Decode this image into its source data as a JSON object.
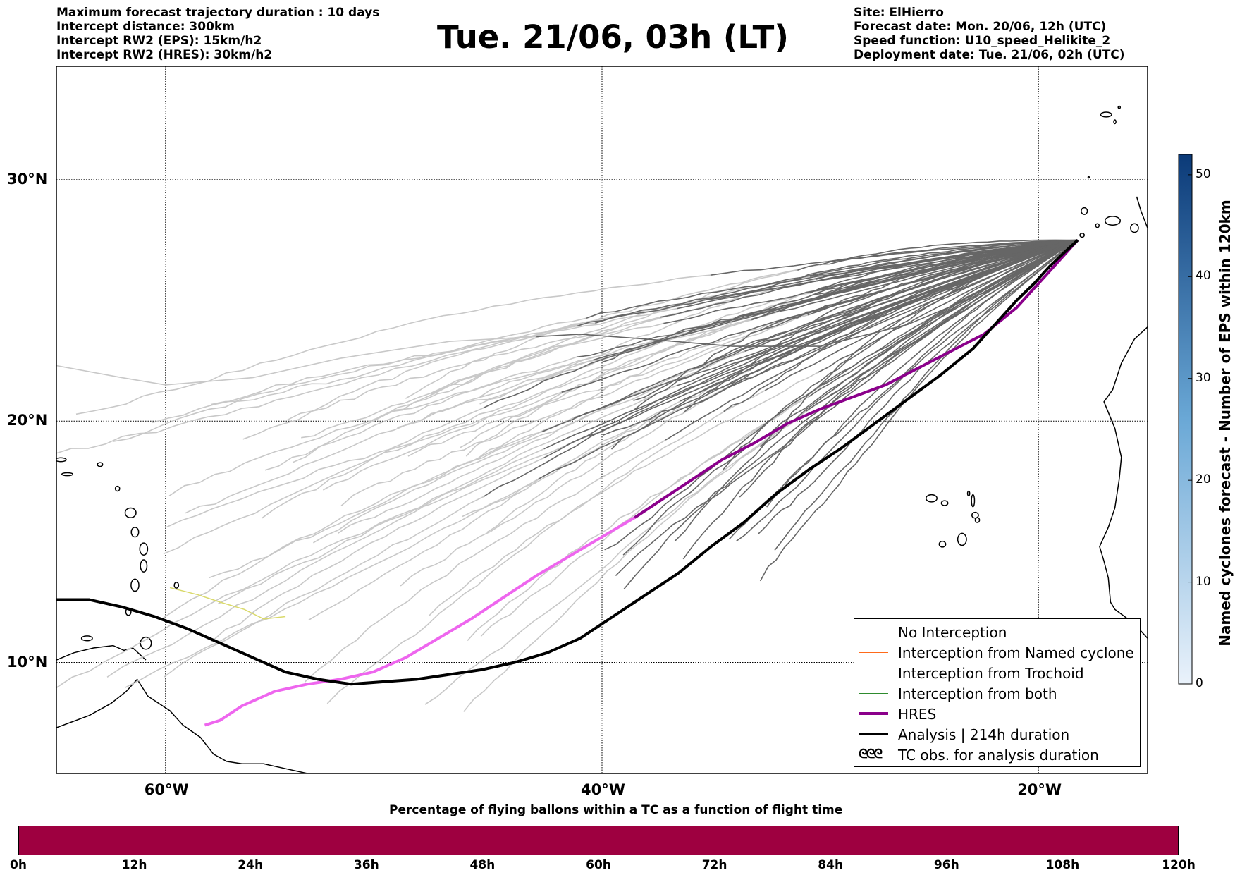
{
  "header": {
    "left_lines": [
      "Maximum forecast trajectory duration : 10 days",
      "Intercept distance: 300km",
      "Intercept RW2 (EPS):  15km/h2",
      "Intercept RW2 (HRES): 30km/h2"
    ],
    "title": "Tue. 21/06, 03h (LT)",
    "right_lines": [
      "Site: ElHierro",
      "Forecast date: Mon. 20/06, 12h (UTC)",
      "Speed function: U10_speed_Helikite_2",
      "Deployment date: Tue. 21/06, 02h (UTC)"
    ]
  },
  "map": {
    "lon_range": [
      -65,
      -15
    ],
    "lat_range": [
      5.4,
      34.7
    ],
    "lat_labels": [
      {
        "value": 30,
        "label": "30°N"
      },
      {
        "value": 20,
        "label": "20°N"
      },
      {
        "value": 10,
        "label": "10°N"
      }
    ],
    "lon_labels": [
      {
        "value": -60,
        "label": "60°W"
      },
      {
        "value": -40,
        "label": "40°W"
      },
      {
        "value": -20,
        "label": "20°W"
      }
    ],
    "grid": true,
    "grid_style": "dotted"
  },
  "legend": {
    "items": [
      {
        "label": "No Interception",
        "color": "#808080"
      },
      {
        "label": "Interception from Named cyclone",
        "color": "#ff6a1a"
      },
      {
        "label": "Interception from Trochoid",
        "color": "#8c7a20"
      },
      {
        "label": "Interception from both",
        "color": "#2e8b2e"
      },
      {
        "label": "HRES",
        "color": "#8b008b"
      },
      {
        "label": "Analysis | 214h duration",
        "color": "#000000"
      },
      {
        "label": "TC obs. for analysis duration",
        "icon": "cyclone-symbol-icon"
      }
    ],
    "tc_symbol": "ᘓᘓᘓ"
  },
  "colorbar": {
    "label": "Named cyclones forecast - Number of EPS within 120km",
    "ticks": [
      0,
      10,
      20,
      30,
      40,
      50
    ],
    "max": 52,
    "color_low": "#eaf2fb",
    "color_high": "#0b3a78"
  },
  "percentage_bar": {
    "title": "Percentage of flying ballons within a TC as a function of flight time",
    "ticks": [
      "0h",
      "12h",
      "24h",
      "36h",
      "48h",
      "60h",
      "72h",
      "84h",
      "96h",
      "108h",
      "120h"
    ],
    "color": "#9e0040"
  },
  "tracks": {
    "origin": [
      -18.2,
      27.5
    ],
    "analysis": [
      [
        -18.2,
        27.5
      ],
      [
        -18.8,
        27.0
      ],
      [
        -19.5,
        26.4
      ],
      [
        -20.2,
        25.7
      ],
      [
        -21.0,
        25.0
      ],
      [
        -22,
        24
      ],
      [
        -23,
        23.0
      ],
      [
        -24.5,
        21.9
      ],
      [
        -26,
        20.9
      ],
      [
        -27.5,
        19.9
      ],
      [
        -29,
        18.9
      ],
      [
        -30.5,
        18.0
      ],
      [
        -32,
        17.0
      ],
      [
        -33.5,
        15.8
      ],
      [
        -35,
        14.8
      ],
      [
        -36.5,
        13.7
      ],
      [
        -38,
        12.8
      ],
      [
        -39.5,
        11.9
      ],
      [
        -41,
        11.0
      ],
      [
        -42.5,
        10.4
      ],
      [
        -44,
        10.0
      ],
      [
        -45.5,
        9.7
      ],
      [
        -47,
        9.5
      ],
      [
        -48.5,
        9.3
      ],
      [
        -50,
        9.2
      ],
      [
        -51.5,
        9.1
      ],
      [
        -53,
        9.3
      ],
      [
        -54.5,
        9.6
      ],
      [
        -56,
        10.2
      ],
      [
        -57.5,
        10.8
      ],
      [
        -59,
        11.4
      ],
      [
        -60.5,
        11.9
      ],
      [
        -62,
        12.3
      ],
      [
        -63.5,
        12.6
      ],
      [
        -65,
        12.6
      ]
    ],
    "hres": [
      [
        -18.2,
        27.5
      ],
      [
        -19.5,
        26.2
      ],
      [
        -21,
        24.7
      ],
      [
        -22.5,
        23.6
      ],
      [
        -24,
        22.9
      ],
      [
        -25.5,
        22.2
      ],
      [
        -27,
        21.5
      ],
      [
        -28.5,
        21.0
      ],
      [
        -30,
        20.5
      ],
      [
        -31.5,
        19.9
      ],
      [
        -33,
        19.1
      ],
      [
        -34.5,
        18.4
      ],
      [
        -36,
        17.5
      ],
      [
        -37.5,
        16.6
      ],
      [
        -38.5,
        16.0
      ],
      [
        -40,
        15.2
      ],
      [
        -41.5,
        14.4
      ],
      [
        -43,
        13.6
      ],
      [
        -44.5,
        12.7
      ],
      [
        -46,
        11.8
      ],
      [
        -47.5,
        11.0
      ],
      [
        -49,
        10.2
      ],
      [
        -50.5,
        9.6
      ],
      [
        -52,
        9.3
      ],
      [
        -53.5,
        9.1
      ],
      [
        -55,
        8.8
      ],
      [
        -56.5,
        8.2
      ],
      [
        -57.5,
        7.6
      ],
      [
        -58.2,
        7.4
      ]
    ]
  }
}
